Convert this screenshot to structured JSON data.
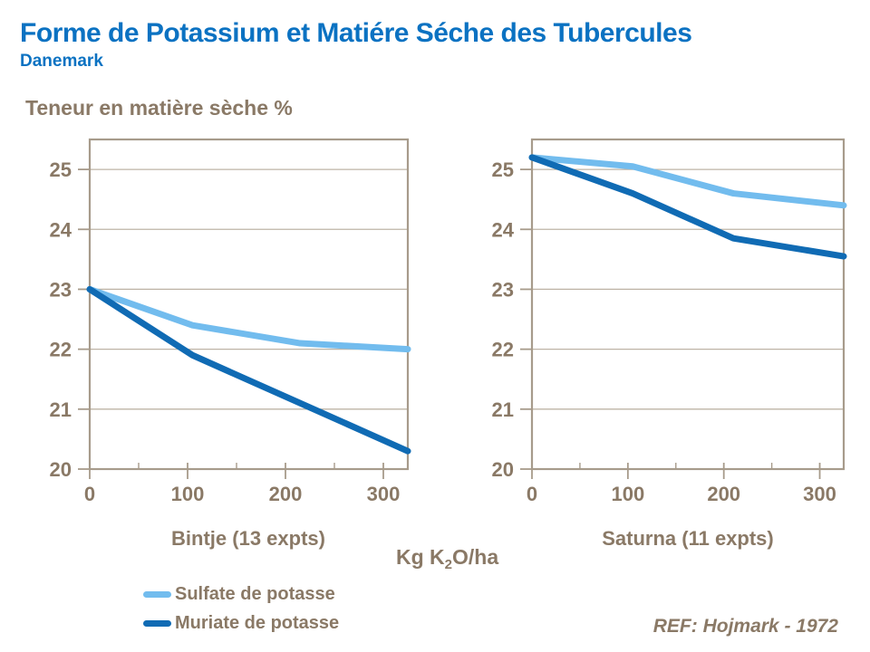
{
  "header": {
    "title": "Forme de Potassium et Matiére Séche des Tubercules",
    "subtitle": "Danemark"
  },
  "y_axis_title": "Teneur en matière sèche %",
  "x_axis_title_parts": {
    "pre": "Kg K",
    "sub": "2",
    "post": "O/ha"
  },
  "ref_note": "REF: Hojmark - 1972",
  "colors": {
    "title_blue": "#0B72C2",
    "sulfate": "#72BCEE",
    "muriate": "#106BB4",
    "text": "#8A7966",
    "axis": "#A79B8B",
    "grid": "#BEB4A6"
  },
  "legend": {
    "items": [
      {
        "label": "Sulfate de potasse",
        "color_key": "sulfate"
      },
      {
        "label": "Muriate de potasse",
        "color_key": "muriate"
      }
    ]
  },
  "chart_data": [
    {
      "type": "line",
      "xlabel": "Bintje (13 expts)",
      "x": [
        0,
        105,
        215,
        325
      ],
      "series": [
        {
          "name": "Sulfate de potasse",
          "color_key": "sulfate",
          "values": [
            23.0,
            22.4,
            22.1,
            22.0
          ]
        },
        {
          "name": "Muriate de potasse",
          "color_key": "muriate",
          "values": [
            23.0,
            21.9,
            21.1,
            20.3
          ]
        }
      ],
      "xlim": [
        0,
        325
      ],
      "ylim": [
        20,
        25.5
      ],
      "xticks": [
        0,
        100,
        200,
        300
      ],
      "xticks_minor": [
        50,
        150,
        250
      ],
      "yticks": [
        20,
        21,
        22,
        23,
        24,
        25
      ],
      "grid": "horizontal",
      "legend_position": "below-left"
    },
    {
      "type": "line",
      "xlabel": "Saturna (11 expts)",
      "x": [
        0,
        105,
        210,
        325
      ],
      "series": [
        {
          "name": "Sulfate de potasse",
          "color_key": "sulfate",
          "values": [
            25.2,
            25.05,
            24.6,
            24.4
          ]
        },
        {
          "name": "Muriate de potasse",
          "color_key": "muriate",
          "values": [
            25.2,
            24.6,
            23.85,
            23.55
          ]
        }
      ],
      "xlim": [
        0,
        325
      ],
      "ylim": [
        20,
        25.5
      ],
      "xticks": [
        0,
        100,
        200,
        300
      ],
      "xticks_minor": [
        50,
        150,
        250
      ],
      "yticks": [
        20,
        21,
        22,
        23,
        24,
        25
      ],
      "grid": "horizontal",
      "legend_position": "below-left"
    }
  ]
}
